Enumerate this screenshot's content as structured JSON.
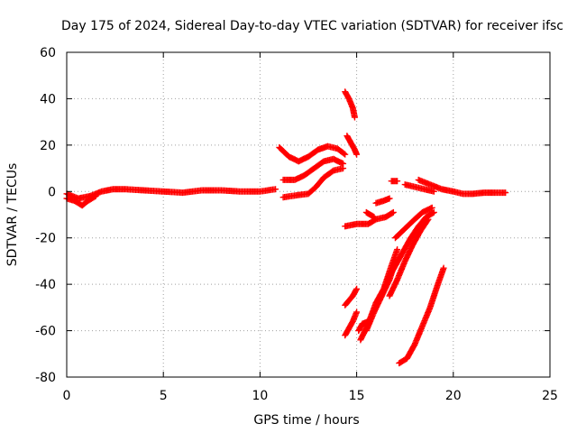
{
  "chart_data": {
    "type": "scatter",
    "title": "Day 175 of 2024, Sidereal Day-to-day VTEC variation (SDTVAR) for receiver ifsc",
    "xlabel": "GPS time / hours",
    "ylabel": "SDTVAR / TECUs",
    "xlim": [
      0,
      25
    ],
    "ylim": [
      -80,
      60
    ],
    "x_ticks": [
      0,
      5,
      10,
      15,
      20,
      25
    ],
    "y_ticks": [
      -80,
      -60,
      -40,
      -20,
      0,
      20,
      40,
      60
    ],
    "grid": true,
    "marker": "plus",
    "series_color": "#ff0000",
    "tracks": [
      [
        [
          0.0,
          -1
        ],
        [
          0.6,
          -3
        ],
        [
          1.2,
          -2
        ],
        [
          1.8,
          0
        ],
        [
          2.4,
          1
        ],
        [
          3.0,
          1
        ],
        [
          4.0,
          0.5
        ],
        [
          5.0,
          0
        ],
        [
          6.0,
          -0.5
        ],
        [
          7.0,
          0.5
        ],
        [
          8.0,
          0.5
        ],
        [
          9.0,
          0
        ],
        [
          10.0,
          0
        ],
        [
          10.8,
          1
        ]
      ],
      [
        [
          0.0,
          -3
        ],
        [
          0.4,
          -4
        ],
        [
          0.8,
          -6
        ],
        [
          1.1,
          -4
        ],
        [
          1.5,
          -2
        ]
      ],
      [
        [
          11.0,
          19
        ],
        [
          11.5,
          15
        ],
        [
          12.0,
          13
        ],
        [
          12.5,
          15
        ],
        [
          13.0,
          18
        ],
        [
          13.5,
          19.5
        ],
        [
          14.0,
          18.5
        ],
        [
          14.4,
          16
        ]
      ],
      [
        [
          11.2,
          5
        ],
        [
          11.8,
          5
        ],
        [
          12.3,
          7
        ],
        [
          12.8,
          10
        ],
        [
          13.3,
          13
        ],
        [
          13.8,
          14
        ],
        [
          14.3,
          12
        ]
      ],
      [
        [
          11.2,
          -2.5
        ],
        [
          12.0,
          -1.5
        ],
        [
          12.5,
          -1
        ],
        [
          12.9,
          2
        ],
        [
          13.3,
          6
        ],
        [
          13.8,
          9
        ],
        [
          14.3,
          10
        ]
      ],
      [
        [
          14.4,
          43
        ],
        [
          14.6,
          40
        ],
        [
          14.8,
          36
        ],
        [
          14.9,
          32
        ]
      ],
      [
        [
          14.5,
          24
        ],
        [
          14.7,
          21
        ],
        [
          14.9,
          18
        ],
        [
          15.0,
          16
        ]
      ],
      [
        [
          14.4,
          -15
        ],
        [
          15.0,
          -14
        ],
        [
          15.6,
          -14
        ],
        [
          16.0,
          -12
        ],
        [
          16.5,
          -11
        ],
        [
          16.9,
          -9
        ]
      ],
      [
        [
          15.5,
          -9
        ],
        [
          15.7,
          -10
        ],
        [
          15.9,
          -11
        ]
      ],
      [
        [
          16.0,
          -5
        ],
        [
          16.4,
          -4
        ],
        [
          16.7,
          -3
        ]
      ],
      [
        [
          16.8,
          4.5
        ],
        [
          17.1,
          4.5
        ]
      ],
      [
        [
          14.4,
          -49
        ],
        [
          14.8,
          -45
        ],
        [
          15.0,
          -42
        ]
      ],
      [
        [
          14.4,
          -62
        ],
        [
          14.8,
          -56
        ],
        [
          15.0,
          -52
        ]
      ],
      [
        [
          15.1,
          -60
        ],
        [
          15.3,
          -57
        ],
        [
          15.6,
          -56
        ]
      ],
      [
        [
          15.2,
          -64
        ],
        [
          15.6,
          -57
        ],
        [
          16.0,
          -48
        ],
        [
          16.4,
          -42
        ],
        [
          16.8,
          -32
        ],
        [
          17.1,
          -25
        ]
      ],
      [
        [
          15.5,
          -60
        ],
        [
          15.9,
          -52
        ],
        [
          16.3,
          -45
        ],
        [
          16.7,
          -38
        ],
        [
          17.0,
          -30
        ]
      ],
      [
        [
          16.6,
          -38
        ],
        [
          17.0,
          -32
        ],
        [
          17.4,
          -26
        ],
        [
          17.8,
          -20
        ],
        [
          18.2,
          -15
        ],
        [
          18.6,
          -11
        ],
        [
          19.0,
          -9
        ]
      ],
      [
        [
          16.7,
          -45
        ],
        [
          17.1,
          -38
        ],
        [
          17.5,
          -30
        ],
        [
          17.9,
          -23
        ],
        [
          18.3,
          -17
        ],
        [
          18.7,
          -12
        ]
      ],
      [
        [
          17.0,
          -20
        ],
        [
          17.5,
          -16
        ],
        [
          18.0,
          -12
        ],
        [
          18.4,
          -9
        ],
        [
          18.9,
          -7
        ]
      ],
      [
        [
          17.2,
          -74
        ],
        [
          17.6,
          -72
        ],
        [
          18.0,
          -66
        ],
        [
          18.4,
          -58
        ],
        [
          18.8,
          -50
        ],
        [
          19.2,
          -40
        ],
        [
          19.5,
          -33
        ]
      ],
      [
        [
          18.2,
          5
        ],
        [
          18.8,
          3
        ],
        [
          19.4,
          1
        ],
        [
          20.0,
          0
        ],
        [
          20.5,
          -1
        ],
        [
          21.0,
          -1
        ],
        [
          21.6,
          -0.5
        ],
        [
          22.2,
          -0.5
        ],
        [
          22.7,
          -0.5
        ]
      ],
      [
        [
          17.5,
          3
        ],
        [
          18.0,
          2
        ],
        [
          18.5,
          1
        ],
        [
          19.0,
          0
        ]
      ]
    ]
  }
}
